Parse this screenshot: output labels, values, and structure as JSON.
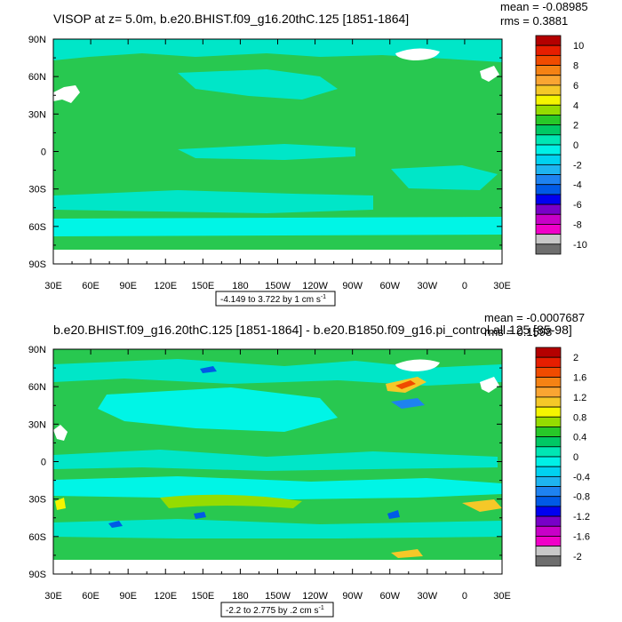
{
  "chart_data": [
    {
      "type": "heatmap",
      "title": "VISOP at z=   5.0m, b.e20.BHIST.f09_g16.20thC.125 [1851-1864]",
      "stats": [
        "mean = -0.08985",
        "rms = 0.3881"
      ],
      "x_ticks": [
        "30E",
        "60E",
        "90E",
        "120E",
        "150E",
        "180",
        "150W",
        "120W",
        "90W",
        "60W",
        "30W",
        "0",
        "30E"
      ],
      "y_ticks": [
        "90N",
        "60N",
        "30N",
        "0",
        "30S",
        "60S",
        "90S"
      ],
      "range_label": "-4.149 to 3.722 by 1 cm s",
      "range_unit_sup": "-1",
      "colorbar": {
        "labels": [
          "10",
          "8",
          "6",
          "4",
          "2",
          "0",
          "-2",
          "-4",
          "-6",
          "-8",
          "-10"
        ],
        "colors": [
          "#b40000",
          "#e61e00",
          "#f04b00",
          "#f58214",
          "#faa532",
          "#f5c828",
          "#f5f500",
          "#96dc00",
          "#28c828",
          "#00c864",
          "#00e6b4",
          "#00f0e6",
          "#00d2f0",
          "#1eb4f0",
          "#1e82f0",
          "#005ae6",
          "#0000f0",
          "#7800c8",
          "#c800c8",
          "#f000c8",
          "#c8c8c8",
          "#6e6e6e"
        ],
        "clear": true
      }
    },
    {
      "type": "heatmap",
      "title": "b.e20.BHIST.f09_g16.20thC.125 [1851-1864] - b.e20.B1850.f09_g16.pi_control.all.125 [85-98]",
      "stats": [
        "mean = -0.0007687",
        "rms = 0.1598"
      ],
      "x_ticks": [
        "30E",
        "60E",
        "90E",
        "120E",
        "150E",
        "180",
        "150W",
        "120W",
        "90W",
        "60W",
        "30W",
        "0",
        "30E"
      ],
      "y_ticks": [
        "90N",
        "60N",
        "30N",
        "0",
        "30S",
        "60S",
        "90S"
      ],
      "range_label": "-2.2 to 2.775 by .2 cm s",
      "range_unit_sup": "-1",
      "colorbar": {
        "labels": [
          "2",
          "1.6",
          "1.2",
          "0.8",
          "0.4",
          "0",
          "-0.4",
          "-0.8",
          "-1.2",
          "-1.6",
          "-2"
        ],
        "colors": [
          "#b40000",
          "#e61e00",
          "#f04b00",
          "#f58214",
          "#faa532",
          "#f5c828",
          "#f5f500",
          "#96dc00",
          "#28c828",
          "#00c864",
          "#00e6b4",
          "#00f0e6",
          "#00d2f0",
          "#1eb4f0",
          "#1e82f0",
          "#005ae6",
          "#0000f0",
          "#7800c8",
          "#c800c8",
          "#f000c8",
          "#c8c8c8",
          "#6e6e6e"
        ]
      }
    }
  ],
  "field": {
    "base_green": "#28c850",
    "cyan": "#00e6c8",
    "light_cyan": "#00f5e6",
    "land": "#ffffff"
  }
}
